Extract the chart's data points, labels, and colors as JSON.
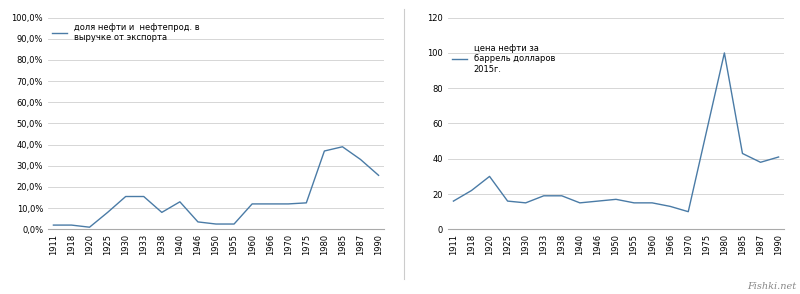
{
  "chart1": {
    "x_labels": [
      "1911",
      "1918",
      "1920",
      "1925",
      "1930",
      "1933",
      "1938",
      "1940",
      "1946",
      "1950",
      "1955",
      "1960",
      "1966",
      "1970",
      "1975",
      "1980",
      "1985",
      "1987",
      "1990"
    ],
    "y_values": [
      2.0,
      2.0,
      1.0,
      8.0,
      15.5,
      15.5,
      8.0,
      13.0,
      3.5,
      2.5,
      2.5,
      12.0,
      12.0,
      12.0,
      12.5,
      37.0,
      39.0,
      33.0,
      25.5
    ],
    "y_ticks": [
      0,
      10,
      20,
      30,
      40,
      50,
      60,
      70,
      80,
      90,
      100
    ],
    "y_tick_labels": [
      "0,0%",
      "10,0%",
      "20,0%",
      "30,0%",
      "40,0%",
      "50,0%",
      "60,0%",
      "70,0%",
      "80,0%",
      "90,0%",
      "100,0%"
    ],
    "legend_label": "доля нефти и  нефтепрод. в\nвыручке от экспорта",
    "line_color": "#4a7ba6",
    "ylim": [
      0,
      100
    ]
  },
  "chart2": {
    "x_labels": [
      "1911",
      "1918",
      "1920",
      "1925",
      "1930",
      "1933",
      "1938",
      "1940",
      "1946",
      "1950",
      "1955",
      "1960",
      "1966",
      "1970",
      "1975",
      "1980",
      "1985",
      "1987",
      "1990"
    ],
    "y_values": [
      16.0,
      22.0,
      30.0,
      16.0,
      15.0,
      19.0,
      19.0,
      15.0,
      16.0,
      17.0,
      15.0,
      15.0,
      13.0,
      10.0,
      55.0,
      100.0,
      43.0,
      38.0,
      41.0
    ],
    "y_ticks": [
      0,
      20,
      40,
      60,
      80,
      100,
      120
    ],
    "y_tick_labels": [
      "0",
      "20",
      "40",
      "60",
      "80",
      "100",
      "120"
    ],
    "legend_label": "цена нефти за\nбаррель долларов\n2015г.",
    "line_color": "#4a7ba6",
    "ylim": [
      0,
      120
    ]
  },
  "bg_color": "#ffffff",
  "watermark": "Fishki.net",
  "grid_color": "#d0d0d0",
  "figsize": [
    8.0,
    2.94
  ],
  "dpi": 100
}
